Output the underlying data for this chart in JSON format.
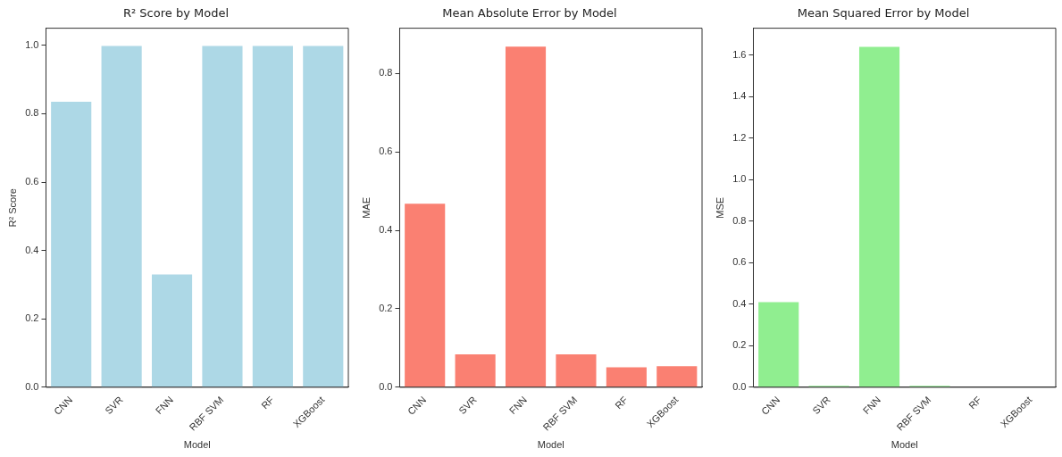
{
  "chart_data": [
    {
      "type": "bar",
      "title": "R² Score by Model",
      "xlabel": "Model",
      "ylabel": "R² Score",
      "categories": [
        "CNN",
        "SVR",
        "FNN",
        "RBF SVM",
        "RF",
        "XGBoost"
      ],
      "values": [
        0.835,
        0.998,
        0.33,
        0.998,
        0.998,
        0.998
      ],
      "color": "#add8e6",
      "ylim": [
        0,
        1.05
      ],
      "yticks": [
        {
          "value": 0,
          "label": "0.0"
        },
        {
          "value": 0.2,
          "label": "0.2"
        },
        {
          "value": 0.4,
          "label": "0.4"
        },
        {
          "value": 0.6,
          "label": "0.6"
        },
        {
          "value": 0.8,
          "label": "0.8"
        },
        {
          "value": 1,
          "label": "1.0"
        }
      ],
      "grid": false,
      "legend": false
    },
    {
      "type": "bar",
      "title": "Mean Absolute Error by Model",
      "xlabel": "Model",
      "ylabel": "MAE",
      "categories": [
        "CNN",
        "SVR",
        "FNN",
        "RBF SVM",
        "RF",
        "XGBoost"
      ],
      "values": [
        0.468,
        0.084,
        0.868,
        0.084,
        0.051,
        0.054
      ],
      "color": "#fa8072",
      "ylim": [
        0,
        0.915
      ],
      "yticks": [
        {
          "value": 0,
          "label": "0.0"
        },
        {
          "value": 0.2,
          "label": "0.2"
        },
        {
          "value": 0.4,
          "label": "0.4"
        },
        {
          "value": 0.6,
          "label": "0.6"
        },
        {
          "value": 0.8,
          "label": "0.8"
        }
      ],
      "grid": false,
      "legend": false
    },
    {
      "type": "bar",
      "title": "Mean Squared Error by Model",
      "xlabel": "Model",
      "ylabel": "MSE",
      "categories": [
        "CNN",
        "SVR",
        "FNN",
        "RBF SVM",
        "RF",
        "XGBoost"
      ],
      "values": [
        0.41,
        0.007,
        1.64,
        0.007,
        null,
        null
      ],
      "color": "#90ee90",
      "ylim": [
        0,
        1.73
      ],
      "yticks": [
        {
          "value": 0,
          "label": "0.0"
        },
        {
          "value": 0.2,
          "label": "0.2"
        },
        {
          "value": 0.4,
          "label": "0.4"
        },
        {
          "value": 0.6,
          "label": "0.6"
        },
        {
          "value": 0.8,
          "label": "0.8"
        },
        {
          "value": 1,
          "label": "1.0"
        },
        {
          "value": 1.2,
          "label": "1.2"
        },
        {
          "value": 1.4,
          "label": "1.4"
        },
        {
          "value": 1.6,
          "label": "1.6"
        }
      ],
      "grid": false,
      "legend": false
    }
  ]
}
